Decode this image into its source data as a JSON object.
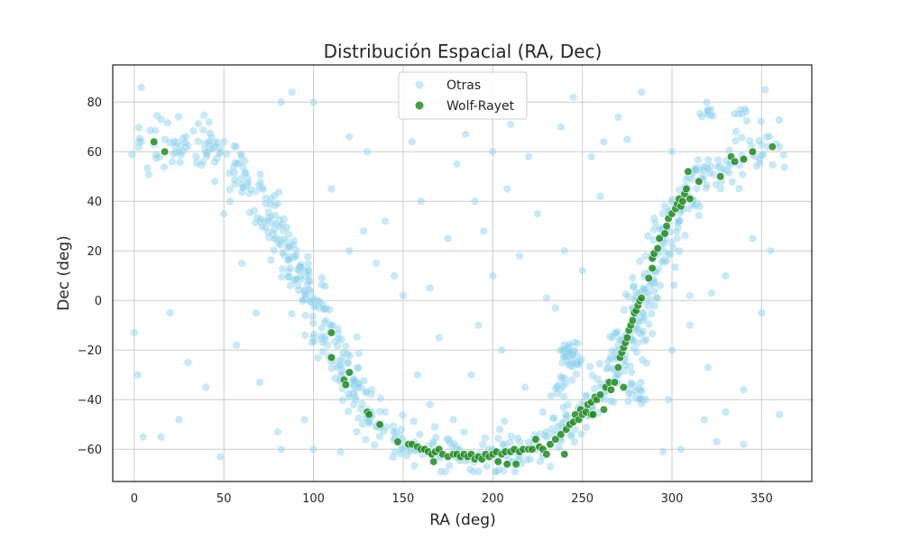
{
  "chart_data": {
    "type": "scatter",
    "title": "Distribución Espacial (RA, Dec)",
    "xlabel": "RA (deg)",
    "ylabel": "Dec (deg)",
    "xlim": [
      -12,
      378
    ],
    "ylim": [
      -73,
      95
    ],
    "xticks": [
      0,
      50,
      100,
      150,
      200,
      250,
      300,
      350
    ],
    "yticks": [
      -60,
      -40,
      -20,
      0,
      20,
      40,
      60,
      80
    ],
    "grid": true,
    "legend_position": "top-center",
    "series": [
      {
        "name": "Otras",
        "color": "#87ceeb",
        "kind": "background",
        "band": [
          [
            0,
            64
          ],
          [
            20,
            62
          ],
          [
            40,
            60
          ],
          [
            55,
            55
          ],
          [
            65,
            45
          ],
          [
            75,
            35
          ],
          [
            85,
            20
          ],
          [
            95,
            5
          ],
          [
            105,
            -10
          ],
          [
            115,
            -25
          ],
          [
            125,
            -38
          ],
          [
            135,
            -48
          ],
          [
            145,
            -55
          ],
          [
            160,
            -59
          ],
          [
            175,
            -62
          ],
          [
            190,
            -63
          ],
          [
            205,
            -62
          ],
          [
            220,
            -60
          ],
          [
            235,
            -54
          ],
          [
            250,
            -45
          ],
          [
            262,
            -35
          ],
          [
            272,
            -20
          ],
          [
            280,
            -5
          ],
          [
            288,
            10
          ],
          [
            297,
            25
          ],
          [
            306,
            38
          ],
          [
            318,
            50
          ],
          [
            335,
            57
          ],
          [
            360,
            62
          ]
        ],
        "clusters": [
          {
            "x": 243,
            "y": -23,
            "n": 40
          },
          {
            "x": 280,
            "y": -37,
            "n": 20
          },
          {
            "x": 240,
            "y": -36,
            "n": 12
          },
          {
            "x": 320,
            "y": 75,
            "n": 10
          },
          {
            "x": 338,
            "y": 73,
            "n": 8
          },
          {
            "x": 40,
            "y": 73,
            "n": 4
          }
        ],
        "scattered": [
          [
            4,
            86
          ],
          [
            15,
            73
          ],
          [
            25,
            60
          ],
          [
            45,
            48
          ],
          [
            50,
            35
          ],
          [
            120,
            66
          ],
          [
            180,
            55
          ],
          [
            185,
            67
          ],
          [
            155,
            64
          ],
          [
            210,
            71
          ],
          [
            200,
            60
          ],
          [
            245,
            82
          ],
          [
            240,
            20
          ],
          [
            130,
            60
          ],
          [
            110,
            45
          ],
          [
            100,
            80
          ],
          [
            88,
            84
          ],
          [
            82,
            80
          ],
          [
            0,
            -13
          ],
          [
            2,
            -30
          ],
          [
            15,
            -55
          ],
          [
            5,
            -55
          ],
          [
            20,
            -5
          ],
          [
            30,
            -25
          ],
          [
            25,
            -48
          ],
          [
            40,
            -35
          ],
          [
            48,
            -63
          ],
          [
            57,
            -18
          ],
          [
            68,
            -5
          ],
          [
            60,
            15
          ],
          [
            70,
            -33
          ],
          [
            80,
            -53
          ],
          [
            82,
            -60
          ],
          [
            95,
            -48
          ],
          [
            100,
            -60
          ],
          [
            115,
            -61
          ],
          [
            140,
            32
          ],
          [
            145,
            10
          ],
          [
            160,
            40
          ],
          [
            165,
            5
          ],
          [
            170,
            -15
          ],
          [
            175,
            25
          ],
          [
            190,
            40
          ],
          [
            195,
            28
          ],
          [
            200,
            10
          ],
          [
            215,
            18
          ],
          [
            225,
            35
          ],
          [
            230,
            1
          ],
          [
            235,
            -3
          ],
          [
            250,
            12
          ],
          [
            260,
            42
          ],
          [
            255,
            58
          ],
          [
            270,
            74
          ],
          [
            275,
            65
          ],
          [
            283,
            84
          ],
          [
            300,
            60
          ],
          [
            310,
            -10
          ],
          [
            320,
            -27
          ],
          [
            330,
            -45
          ],
          [
            340,
            -36
          ],
          [
            350,
            -5
          ],
          [
            360,
            -46
          ],
          [
            355,
            20
          ],
          [
            345,
            25
          ],
          [
            352,
            85
          ],
          [
            330,
            10
          ],
          [
            322,
            3
          ],
          [
            318,
            -48
          ],
          [
            325,
            -57
          ],
          [
            340,
            -58
          ],
          [
            295,
            -61
          ],
          [
            298,
            -40
          ],
          [
            300,
            -20
          ],
          [
            310,
            2
          ],
          [
            305,
            -60
          ],
          [
            188,
            -30
          ],
          [
            205,
            -20
          ],
          [
            218,
            -35
          ],
          [
            228,
            -45
          ],
          [
            140,
            -45
          ],
          [
            150,
            2
          ],
          [
            135,
            15
          ],
          [
            120,
            20
          ],
          [
            128,
            28
          ],
          [
            158,
            -30
          ],
          [
            165,
            -42
          ],
          [
            178,
            -48
          ],
          [
            192,
            -10
          ],
          [
            208,
            45
          ],
          [
            220,
            58
          ],
          [
            238,
            70
          ],
          [
            262,
            64
          ]
        ]
      },
      {
        "name": "Wolf-Rayet",
        "color": "#228b22",
        "kind": "points",
        "points": [
          [
            11,
            64
          ],
          [
            17,
            60
          ],
          [
            110,
            -13
          ],
          [
            110,
            -23
          ],
          [
            117,
            -32
          ],
          [
            118,
            -34
          ],
          [
            120,
            -29
          ],
          [
            130,
            -45
          ],
          [
            131,
            -46
          ],
          [
            137,
            -50
          ],
          [
            147,
            -57
          ],
          [
            153,
            -58
          ],
          [
            155,
            -58
          ],
          [
            158,
            -59
          ],
          [
            160,
            -60
          ],
          [
            162,
            -60
          ],
          [
            164,
            -61
          ],
          [
            166,
            -62
          ],
          [
            167,
            -65
          ],
          [
            168,
            -61
          ],
          [
            170,
            -60
          ],
          [
            172,
            -62
          ],
          [
            175,
            -63
          ],
          [
            178,
            -62
          ],
          [
            180,
            -62
          ],
          [
            182,
            -63
          ],
          [
            184,
            -62
          ],
          [
            186,
            -63
          ],
          [
            188,
            -62
          ],
          [
            190,
            -64
          ],
          [
            192,
            -63
          ],
          [
            194,
            -64
          ],
          [
            196,
            -62
          ],
          [
            198,
            -63
          ],
          [
            200,
            -62
          ],
          [
            202,
            -61
          ],
          [
            203,
            -65
          ],
          [
            205,
            -62
          ],
          [
            207,
            -61
          ],
          [
            208,
            -66
          ],
          [
            210,
            -61
          ],
          [
            212,
            -60
          ],
          [
            213,
            -66
          ],
          [
            215,
            -61
          ],
          [
            217,
            -60
          ],
          [
            220,
            -60
          ],
          [
            222,
            -60
          ],
          [
            224,
            -56
          ],
          [
            226,
            -59
          ],
          [
            228,
            -60
          ],
          [
            230,
            -62
          ],
          [
            232,
            -58
          ],
          [
            235,
            -56
          ],
          [
            238,
            -54
          ],
          [
            240,
            -62
          ],
          [
            241,
            -52
          ],
          [
            243,
            -50
          ],
          [
            245,
            -49
          ],
          [
            246,
            -46
          ],
          [
            248,
            -48
          ],
          [
            249,
            -44
          ],
          [
            250,
            -46
          ],
          [
            252,
            -45
          ],
          [
            253,
            -42
          ],
          [
            255,
            -41
          ],
          [
            255,
            -46
          ],
          [
            256,
            -46
          ],
          [
            257,
            -39
          ],
          [
            258,
            -40
          ],
          [
            260,
            -38
          ],
          [
            262,
            -44
          ],
          [
            263,
            -35
          ],
          [
            265,
            -33
          ],
          [
            266,
            -36
          ],
          [
            268,
            -33
          ],
          [
            270,
            -27
          ],
          [
            271,
            -23
          ],
          [
            272,
            -21
          ],
          [
            273,
            -19
          ],
          [
            273,
            -35
          ],
          [
            274,
            -17
          ],
          [
            275,
            -15
          ],
          [
            276,
            -12
          ],
          [
            277,
            -10
          ],
          [
            278,
            -8
          ],
          [
            279,
            -5
          ],
          [
            280,
            -4
          ],
          [
            281,
            -2
          ],
          [
            282,
            0
          ],
          [
            283,
            1
          ],
          [
            287,
            9
          ],
          [
            289,
            13
          ],
          [
            289,
            17
          ],
          [
            290,
            19
          ],
          [
            292,
            21
          ],
          [
            293,
            25
          ],
          [
            296,
            27
          ],
          [
            297,
            30
          ],
          [
            298,
            33
          ],
          [
            300,
            35
          ],
          [
            302,
            37
          ],
          [
            303,
            39
          ],
          [
            304,
            41
          ],
          [
            305,
            38
          ],
          [
            306,
            40
          ],
          [
            307,
            43
          ],
          [
            308,
            45
          ],
          [
            309,
            52
          ],
          [
            310,
            41
          ],
          [
            315,
            48
          ],
          [
            327,
            50
          ],
          [
            333,
            58
          ],
          [
            335,
            56
          ],
          [
            340,
            57
          ],
          [
            345,
            60
          ],
          [
            356,
            62
          ]
        ]
      }
    ]
  }
}
